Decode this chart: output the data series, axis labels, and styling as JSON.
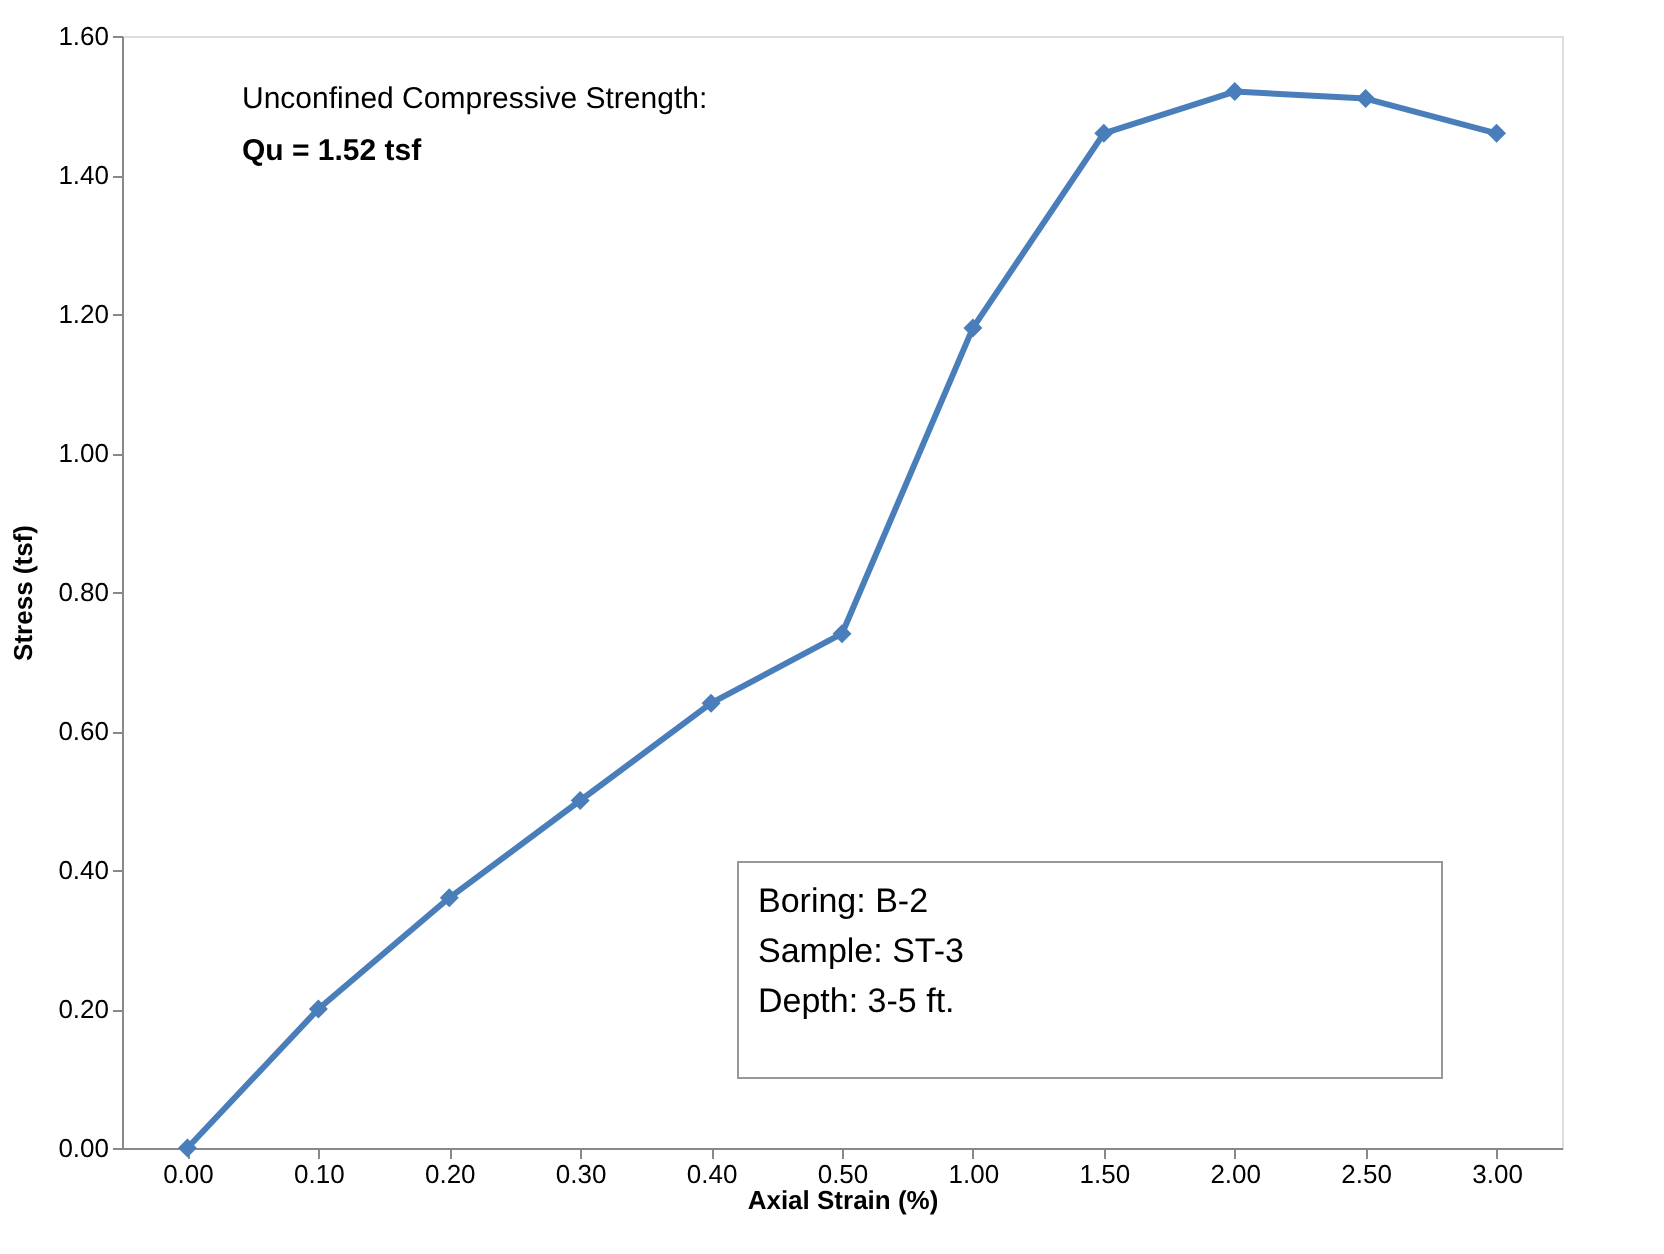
{
  "chart_data": {
    "type": "line",
    "xlabel": "Axial Strain (%)",
    "ylabel": "Stress (tsf)",
    "categories": [
      "0.00",
      "0.10",
      "0.20",
      "0.30",
      "0.40",
      "0.50",
      "1.00",
      "1.50",
      "2.00",
      "2.50",
      "3.00"
    ],
    "series": [
      {
        "color": "#4a7ebb",
        "values": [
          0,
          0.2,
          0.36,
          0.5,
          0.64,
          0.74,
          1.18,
          1.46,
          1.52,
          1.51,
          1.46
        ]
      }
    ],
    "ylim": [
      0,
      1.6
    ],
    "yticks": [
      {
        "value": 0,
        "label": "0.00"
      },
      {
        "value": 0.2,
        "label": "0.20"
      },
      {
        "value": 0.4,
        "label": "0.40"
      },
      {
        "value": 0.6,
        "label": "0.60"
      },
      {
        "value": 0.8,
        "label": "0.80"
      },
      {
        "value": 1.0,
        "label": "1.00"
      },
      {
        "value": 1.2,
        "label": "1.20"
      },
      {
        "value": 1.4,
        "label": "1.40"
      },
      {
        "value": 1.6,
        "label": "1.60"
      }
    ],
    "grid": false,
    "marker": "diamond",
    "line_style": "solid",
    "annotations": [
      "Unconfined Compressive Strength:",
      "Qu = 1.52 tsf",
      "Boring:  B-2",
      "Sample:  ST-3",
      "Depth: 3-5 ft."
    ]
  }
}
